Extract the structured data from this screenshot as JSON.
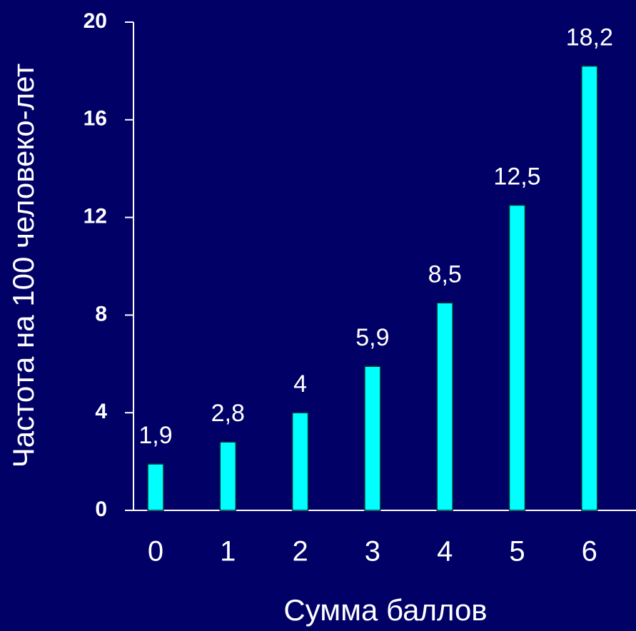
{
  "chart_data": {
    "type": "bar",
    "x_label": "Сумма баллов",
    "y_label": "Частота на 100 человеко-лет",
    "categories": [
      "0",
      "1",
      "2",
      "3",
      "4",
      "5",
      "6"
    ],
    "values": [
      1.9,
      2.8,
      4,
      5.9,
      8.5,
      12.5,
      18.2
    ],
    "value_labels": [
      "1,9",
      "2,8",
      "4",
      "5,9",
      "8,5",
      "12,5",
      "18,2"
    ],
    "color": "#00ffff",
    "ylim": [
      0,
      20
    ],
    "yticks": [
      0,
      4,
      8,
      12,
      16,
      20
    ],
    "grid": false
  }
}
